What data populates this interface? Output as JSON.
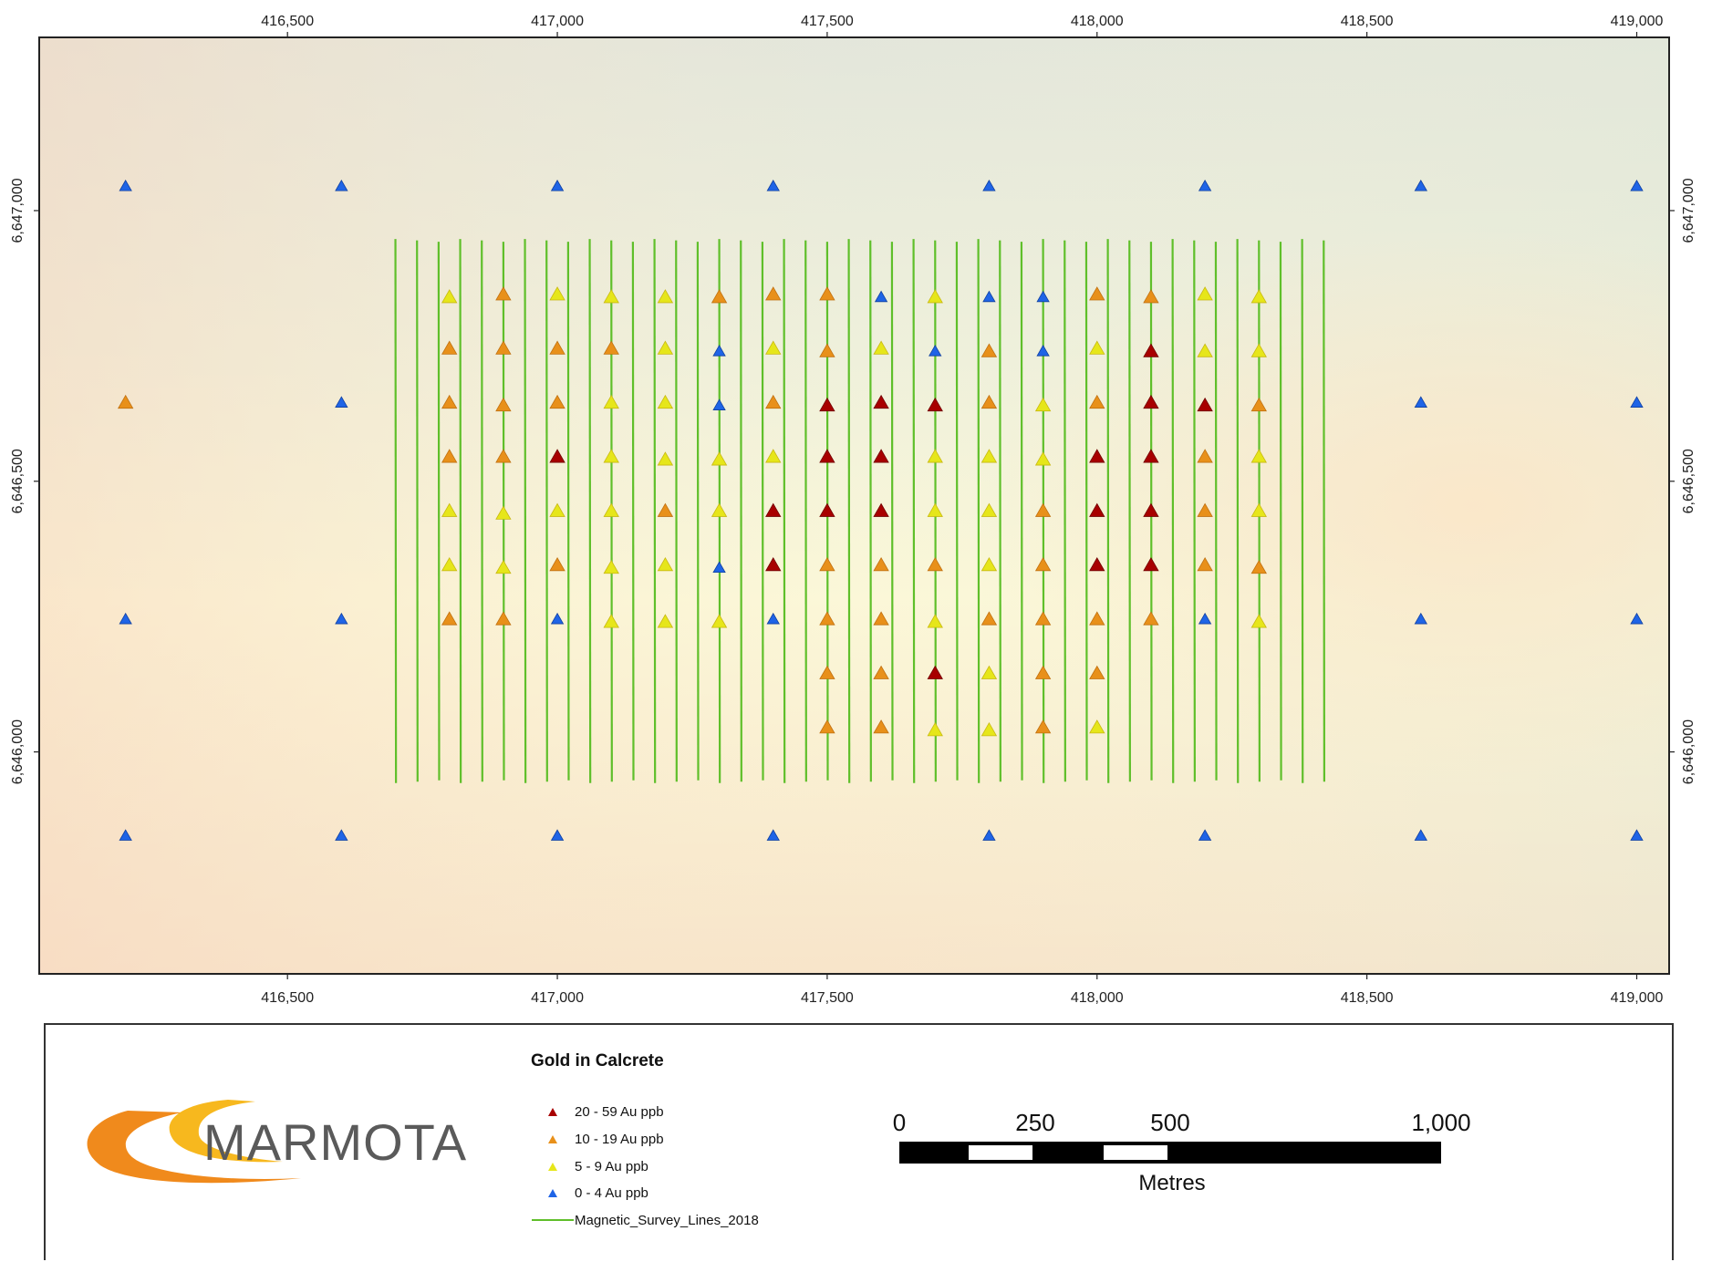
{
  "map": {
    "x_ticks": [
      "416,500",
      "417,000",
      "417,500",
      "418,000",
      "418,500",
      "419,000"
    ],
    "x_tick_values": [
      416500,
      417000,
      417500,
      418000,
      418500,
      419000
    ],
    "y_ticks": [
      "6,647,000",
      "6,646,500",
      "6,646,000"
    ],
    "y_tick_values": [
      6647000,
      6646500,
      6646000
    ],
    "x_range": [
      416040,
      419060
    ],
    "y_range": [
      6645590,
      6647320
    ],
    "colors": {
      "class_20_59": "#a80000",
      "class_10_19": "#e8901a",
      "class_5_9": "#e6e61a",
      "class_0_4": "#1f64e6",
      "survey_line": "#5fbf2a"
    },
    "survey_lines": {
      "name": "Magnetic_Survey_Lines_2018",
      "x_values": [
        416700,
        416740,
        416780,
        416820,
        416860,
        416900,
        416940,
        416980,
        417020,
        417060,
        417100,
        417140,
        417180,
        417220,
        417260,
        417300,
        417340,
        417380,
        417420,
        417460,
        417500,
        417540,
        417580,
        417620,
        417660,
        417700,
        417740,
        417780,
        417820,
        417860,
        417900,
        417940,
        417980,
        418020,
        418060,
        418100,
        418140,
        418180,
        418220,
        418260,
        418300,
        418340,
        418380,
        418420
      ],
      "y_start": 6646945,
      "y_end": 6645945
    },
    "samples": {
      "class_order": [
        "20-59",
        "10-19",
        "5-9",
        "0-4"
      ],
      "classes": {
        "20-59": [
          [
            417000,
            6646545
          ],
          [
            417400,
            6646445
          ],
          [
            417400,
            6646345
          ],
          [
            417500,
            6646640
          ],
          [
            417500,
            6646545
          ],
          [
            417500,
            6646445
          ],
          [
            417600,
            6646645
          ],
          [
            417600,
            6646545
          ],
          [
            417600,
            6646445
          ],
          [
            417700,
            6646640
          ],
          [
            417700,
            6646145
          ],
          [
            418000,
            6646545
          ],
          [
            418000,
            6646445
          ],
          [
            418000,
            6646345
          ],
          [
            418100,
            6646740
          ],
          [
            418100,
            6646645
          ],
          [
            418100,
            6646545
          ],
          [
            418100,
            6646445
          ],
          [
            418100,
            6646345
          ],
          [
            418200,
            6646640
          ]
        ],
        "10-19": [
          [
            416200,
            6646645
          ],
          [
            416800,
            6646745
          ],
          [
            416800,
            6646645
          ],
          [
            416800,
            6646545
          ],
          [
            416800,
            6646245
          ],
          [
            416900,
            6646845
          ],
          [
            416900,
            6646745
          ],
          [
            416900,
            6646640
          ],
          [
            416900,
            6646545
          ],
          [
            416900,
            6646245
          ],
          [
            417000,
            6646745
          ],
          [
            417000,
            6646645
          ],
          [
            417000,
            6646345
          ],
          [
            417100,
            6646745
          ],
          [
            417200,
            6646445
          ],
          [
            417300,
            6646840
          ],
          [
            417400,
            6646845
          ],
          [
            417400,
            6646645
          ],
          [
            417500,
            6646845
          ],
          [
            417500,
            6646740
          ],
          [
            417500,
            6646345
          ],
          [
            417500,
            6646245
          ],
          [
            417500,
            6646145
          ],
          [
            417500,
            6646045
          ],
          [
            417600,
            6646345
          ],
          [
            417600,
            6646245
          ],
          [
            417600,
            6646145
          ],
          [
            417600,
            6646045
          ],
          [
            417700,
            6646345
          ],
          [
            417800,
            6646740
          ],
          [
            417800,
            6646645
          ],
          [
            417800,
            6646245
          ],
          [
            417900,
            6646445
          ],
          [
            417900,
            6646345
          ],
          [
            417900,
            6646245
          ],
          [
            417900,
            6646145
          ],
          [
            417900,
            6646045
          ],
          [
            418000,
            6646845
          ],
          [
            418000,
            6646645
          ],
          [
            418000,
            6646245
          ],
          [
            418000,
            6646145
          ],
          [
            418100,
            6646840
          ],
          [
            418100,
            6646245
          ],
          [
            418200,
            6646545
          ],
          [
            418200,
            6646445
          ],
          [
            418200,
            6646345
          ],
          [
            418300,
            6646640
          ],
          [
            418300,
            6646340
          ]
        ],
        "5-9": [
          [
            416800,
            6646840
          ],
          [
            416800,
            6646445
          ],
          [
            416800,
            6646345
          ],
          [
            416900,
            6646440
          ],
          [
            416900,
            6646340
          ],
          [
            417000,
            6646845
          ],
          [
            417000,
            6646445
          ],
          [
            417100,
            6646840
          ],
          [
            417100,
            6646645
          ],
          [
            417100,
            6646545
          ],
          [
            417100,
            6646445
          ],
          [
            417100,
            6646340
          ],
          [
            417100,
            6646240
          ],
          [
            417200,
            6646840
          ],
          [
            417200,
            6646745
          ],
          [
            417200,
            6646645
          ],
          [
            417200,
            6646540
          ],
          [
            417200,
            6646345
          ],
          [
            417200,
            6646240
          ],
          [
            417300,
            6646540
          ],
          [
            417300,
            6646445
          ],
          [
            417300,
            6646240
          ],
          [
            417400,
            6646745
          ],
          [
            417400,
            6646545
          ],
          [
            417600,
            6646745
          ],
          [
            417700,
            6646840
          ],
          [
            417700,
            6646545
          ],
          [
            417700,
            6646445
          ],
          [
            417700,
            6646240
          ],
          [
            417700,
            6646040
          ],
          [
            417800,
            6646545
          ],
          [
            417800,
            6646445
          ],
          [
            417800,
            6646345
          ],
          [
            417800,
            6646145
          ],
          [
            417800,
            6646040
          ],
          [
            417900,
            6646640
          ],
          [
            417900,
            6646540
          ],
          [
            418000,
            6646745
          ],
          [
            418000,
            6646045
          ],
          [
            418200,
            6646845
          ],
          [
            418200,
            6646740
          ],
          [
            418300,
            6646840
          ],
          [
            418300,
            6646740
          ],
          [
            418300,
            6646545
          ],
          [
            418300,
            6646445
          ],
          [
            418300,
            6646240
          ]
        ],
        "0-4": [
          [
            416200,
            6647045
          ],
          [
            416600,
            6647045
          ],
          [
            417000,
            6647045
          ],
          [
            417400,
            6647045
          ],
          [
            417800,
            6647045
          ],
          [
            418200,
            6647045
          ],
          [
            418600,
            6647045
          ],
          [
            419000,
            6647045
          ],
          [
            416600,
            6646645
          ],
          [
            418600,
            6646645
          ],
          [
            419000,
            6646645
          ],
          [
            416200,
            6646245
          ],
          [
            416600,
            6646245
          ],
          [
            417000,
            6646245
          ],
          [
            417400,
            6646245
          ],
          [
            418200,
            6646245
          ],
          [
            418600,
            6646245
          ],
          [
            419000,
            6646245
          ],
          [
            416200,
            6645845
          ],
          [
            416600,
            6645845
          ],
          [
            417000,
            6645845
          ],
          [
            417400,
            6645845
          ],
          [
            417800,
            6645845
          ],
          [
            418200,
            6645845
          ],
          [
            418600,
            6645845
          ],
          [
            419000,
            6645845
          ],
          [
            417600,
            6646840
          ],
          [
            417800,
            6646840
          ],
          [
            417900,
            6646840
          ],
          [
            417300,
            6646740
          ],
          [
            417700,
            6646740
          ],
          [
            417900,
            6646740
          ],
          [
            417300,
            6646640
          ],
          [
            417300,
            6646340
          ]
        ]
      }
    }
  },
  "legend": {
    "title": "Gold in Calcrete",
    "items": [
      {
        "label": "20 - 59 Au ppb",
        "color": "#a80000",
        "symbol": "triangle"
      },
      {
        "label": "10 - 19 Au ppb",
        "color": "#e8901a",
        "symbol": "triangle"
      },
      {
        "label": "5 - 9 Au ppb",
        "color": "#e6e61a",
        "symbol": "triangle"
      },
      {
        "label": "0 - 4 Au ppb",
        "color": "#1f64e6",
        "symbol": "triangle"
      },
      {
        "label": "Magnetic_Survey_Lines_2018",
        "color": "#5fbf2a",
        "symbol": "line"
      }
    ]
  },
  "scale_bar": {
    "labels": [
      "0",
      "250",
      "500",
      "1,000"
    ],
    "values": [
      0,
      250,
      500,
      1000
    ],
    "unit": "Metres"
  },
  "logo": {
    "text": "MARMOTA",
    "colors": [
      "#f08a1c",
      "#f7b81e"
    ]
  }
}
